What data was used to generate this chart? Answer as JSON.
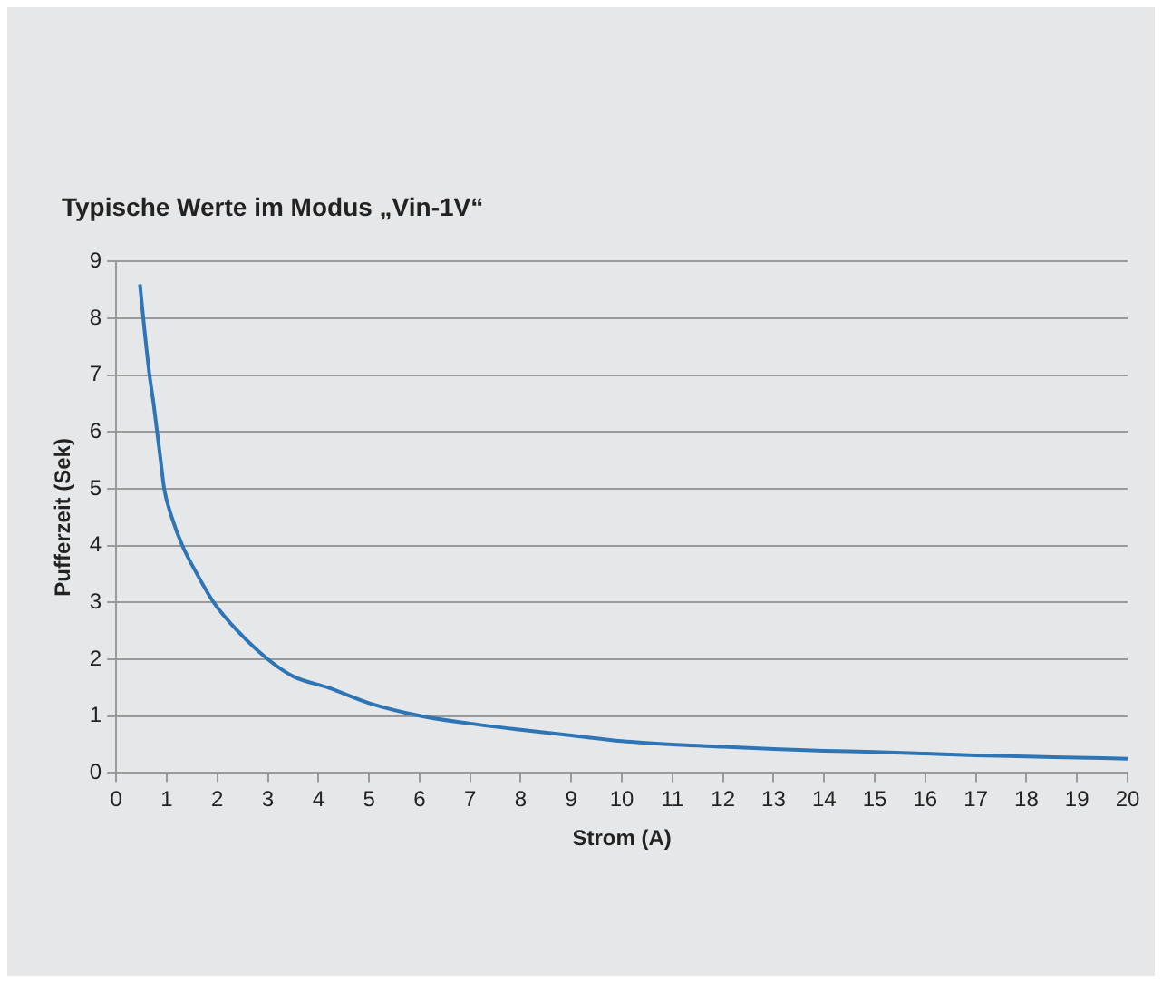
{
  "chart_data": {
    "type": "line",
    "title": "Typische Werte im Modus „Vin-1V“",
    "xlabel": "Strom (A)",
    "ylabel": "Pufferzeit (Sek)",
    "x": [
      0.47,
      0.56,
      0.66,
      0.74,
      0.81,
      0.88,
      0.95,
      1.1,
      1.31,
      1.6,
      1.93,
      2.4,
      3.0,
      3.5,
      4.2,
      5,
      6.04,
      7,
      8,
      9,
      10,
      11,
      12,
      13,
      14,
      15,
      16,
      17,
      18,
      19,
      20
    ],
    "series": [
      {
        "color": "#2e75b6",
        "values": [
          8.6,
          7.8,
          7,
          6.5,
          6,
          5.5,
          5,
          4.5,
          4,
          3.5,
          3,
          2.5,
          2,
          1.7,
          1.5,
          1.23,
          1,
          0.87,
          0.76,
          0.66,
          0.56,
          0.5,
          0.46,
          0.42,
          0.39,
          0.37,
          0.34,
          0.31,
          0.29,
          0.27,
          0.25
        ]
      }
    ],
    "xlim": [
      0,
      20
    ],
    "xticks": [
      0,
      1,
      2,
      3,
      4,
      5,
      6,
      7,
      8,
      9,
      10,
      11,
      12,
      13,
      14,
      15,
      16,
      17,
      18,
      19,
      20
    ],
    "ylim": [
      0,
      9
    ],
    "yticks": [
      0,
      1,
      2,
      3,
      4,
      5,
      6,
      7,
      8,
      9
    ],
    "grid": "y",
    "legend": false,
    "marker": "none",
    "line_style": "solid"
  }
}
